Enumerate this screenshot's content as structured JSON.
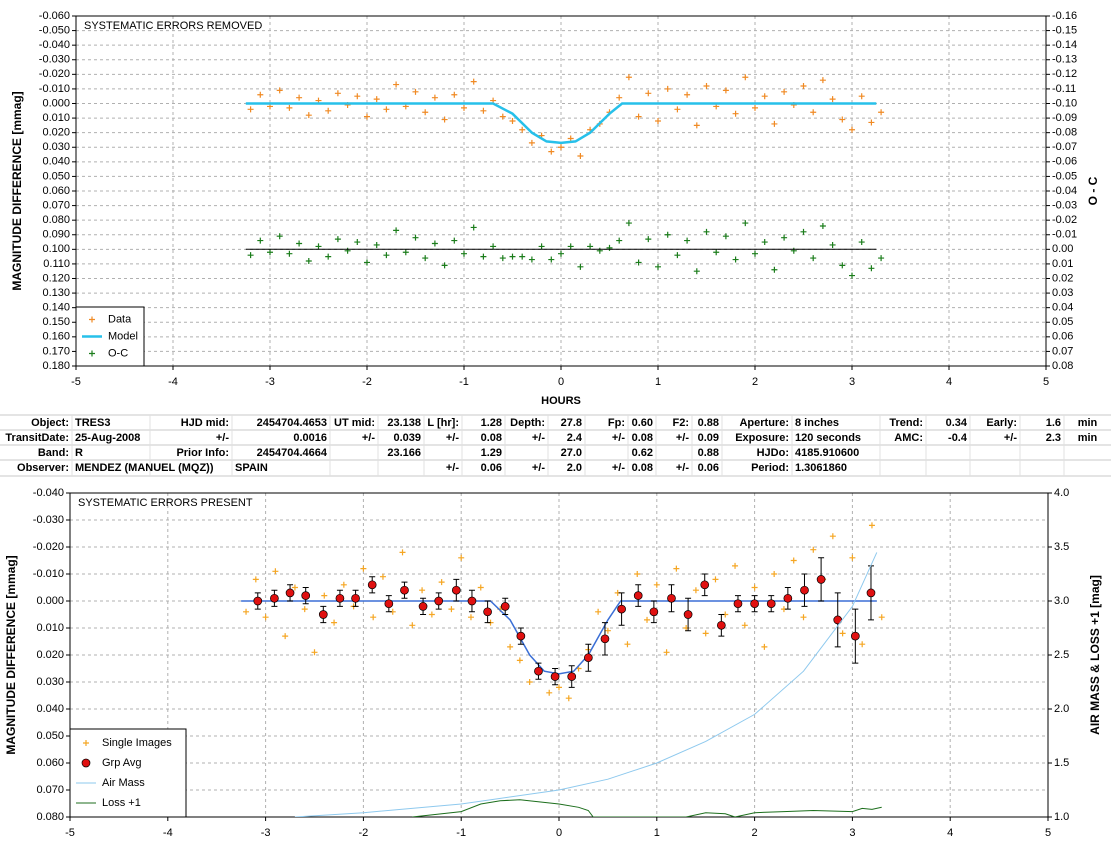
{
  "chart_data": [
    {
      "type": "scatter",
      "title": "SYSTEMATIC ERRORS REMOVED",
      "ylabel": "MAGNITUDE DIFFERENCE [mmag]",
      "y2label": "O - C",
      "xlabel": "HOURS",
      "xlim": [
        -5,
        5
      ],
      "xticks": [
        -5,
        -4,
        -3,
        -2,
        -1,
        0,
        1,
        2,
        3,
        4,
        5
      ],
      "ylim": [
        -0.06,
        0.18
      ],
      "y_inverted": true,
      "yticks": [
        {
          "value": -0.06,
          "label": "-0.060"
        },
        {
          "value": -0.05,
          "label": "-0.050"
        },
        {
          "value": -0.04,
          "label": "-0.040"
        },
        {
          "value": -0.03,
          "label": "-0.030"
        },
        {
          "value": -0.02,
          "label": "-0.020"
        },
        {
          "value": -0.01,
          "label": "-0.010"
        },
        {
          "value": 0,
          "label": "0.000"
        },
        {
          "value": 0.01,
          "label": "0.010"
        },
        {
          "value": 0.02,
          "label": "0.020"
        },
        {
          "value": 0.03,
          "label": "0.030"
        },
        {
          "value": 0.04,
          "label": "0.040"
        },
        {
          "value": 0.05,
          "label": "0.050"
        },
        {
          "value": 0.06,
          "label": "0.060"
        },
        {
          "value": 0.07,
          "label": "0.070"
        },
        {
          "value": 0.08,
          "label": "0.080"
        },
        {
          "value": 0.09,
          "label": "0.090"
        },
        {
          "value": 0.1,
          "label": "0.100"
        },
        {
          "value": 0.11,
          "label": "0.110"
        },
        {
          "value": 0.12,
          "label": "0.120"
        },
        {
          "value": 0.13,
          "label": "0.130"
        },
        {
          "value": 0.14,
          "label": "0.140"
        },
        {
          "value": 0.15,
          "label": "0.150"
        },
        {
          "value": 0.16,
          "label": "0.160"
        },
        {
          "value": 0.17,
          "label": "0.170"
        },
        {
          "value": 0.18,
          "label": "0.180"
        }
      ],
      "y2lim": [
        -0.16,
        0.08
      ],
      "y2_inverted": true,
      "y2ticks": [
        -0.16,
        -0.15,
        -0.14,
        -0.13,
        -0.12,
        -0.11,
        {
          "value": -0.1,
          "label": "-0.10"
        },
        -0.09,
        -0.08,
        -0.07,
        -0.06,
        -0.05,
        -0.04,
        -0.03,
        -0.02,
        -0.01,
        {
          "value": 0,
          "label": "0.00"
        },
        0.01,
        0.02,
        0.03,
        0.04,
        0.05,
        0.06,
        0.07,
        0.08
      ],
      "grid": true,
      "legend": "lower left",
      "series": [
        {
          "name": "Data",
          "style": "plus",
          "color": "#f08a24",
          "x": [
            -3.2,
            -3.1,
            -3.0,
            -2.9,
            -2.8,
            -2.7,
            -2.6,
            -2.5,
            -2.4,
            -2.3,
            -2.2,
            -2.1,
            -2.0,
            -1.9,
            -1.8,
            -1.7,
            -1.6,
            -1.5,
            -1.4,
            -1.3,
            -1.2,
            -1.1,
            -1.0,
            -0.9,
            -0.8,
            -0.7,
            -0.6,
            -0.5,
            -0.4,
            -0.3,
            -0.2,
            -0.1,
            0,
            0.1,
            0.2,
            0.3,
            0.4,
            0.5,
            0.6,
            0.7,
            0.8,
            0.9,
            1.0,
            1.1,
            1.2,
            1.3,
            1.4,
            1.5,
            1.6,
            1.7,
            1.8,
            1.9,
            2.0,
            2.1,
            2.2,
            2.3,
            2.4,
            2.5,
            2.6,
            2.7,
            2.8,
            2.9,
            3.0,
            3.1,
            3.2,
            3.3
          ],
          "values": [
            0.004,
            -0.006,
            0.002,
            -0.009,
            0.003,
            -0.004,
            0.008,
            -0.002,
            0.005,
            -0.007,
            0.001,
            -0.005,
            0.009,
            -0.003,
            0.004,
            -0.013,
            0.002,
            -0.008,
            0.006,
            -0.004,
            0.011,
            -0.006,
            0.003,
            -0.015,
            0.005,
            -0.002,
            0.009,
            0.012,
            0.018,
            0.027,
            0.022,
            0.033,
            0.03,
            0.024,
            0.036,
            0.018,
            0.014,
            0.006,
            -0.004,
            -0.018,
            0.009,
            -0.007,
            0.012,
            -0.01,
            0.004,
            -0.006,
            0.015,
            -0.012,
            0.002,
            -0.009,
            0.007,
            -0.018,
            0.003,
            -0.005,
            0.014,
            -0.008,
            0.001,
            -0.012,
            0.006,
            -0.016,
            -0.003,
            0.011,
            0.018,
            -0.005,
            0.013,
            0.006
          ]
        },
        {
          "name": "Model",
          "style": "line",
          "color": "#27c0ea",
          "width": 2.5,
          "x": [
            -3.25,
            -0.7,
            -0.5,
            -0.3,
            -0.15,
            0,
            0.15,
            0.3,
            0.5,
            0.63,
            3.25
          ],
          "values": [
            0,
            0,
            0.007,
            0.02,
            0.026,
            0.027,
            0.026,
            0.02,
            0.007,
            0,
            0
          ]
        },
        {
          "name": "O-C",
          "style": "plus",
          "color": "#1b7d1b",
          "axis": "y2",
          "x": [
            -3.2,
            -3.1,
            -3.0,
            -2.9,
            -2.8,
            -2.7,
            -2.6,
            -2.5,
            -2.4,
            -2.3,
            -2.2,
            -2.1,
            -2.0,
            -1.9,
            -1.8,
            -1.7,
            -1.6,
            -1.5,
            -1.4,
            -1.3,
            -1.2,
            -1.1,
            -1.0,
            -0.9,
            -0.8,
            -0.7,
            -0.6,
            -0.5,
            -0.4,
            -0.3,
            -0.2,
            -0.1,
            0,
            0.1,
            0.2,
            0.3,
            0.4,
            0.5,
            0.6,
            0.7,
            0.8,
            0.9,
            1.0,
            1.1,
            1.2,
            1.3,
            1.4,
            1.5,
            1.6,
            1.7,
            1.8,
            1.9,
            2.0,
            2.1,
            2.2,
            2.3,
            2.4,
            2.5,
            2.6,
            2.7,
            2.8,
            2.9,
            3.0,
            3.1,
            3.2,
            3.3
          ],
          "values": [
            0.004,
            -0.006,
            0.002,
            -0.009,
            0.003,
            -0.004,
            0.008,
            -0.002,
            0.005,
            -0.007,
            0.001,
            -0.005,
            0.009,
            -0.003,
            0.004,
            -0.013,
            0.002,
            -0.008,
            0.006,
            -0.004,
            0.011,
            -0.006,
            0.003,
            -0.015,
            0.005,
            -0.002,
            0.006,
            0.005,
            0.005,
            0.007,
            -0.002,
            0.007,
            0.003,
            -0.002,
            0.012,
            -0.002,
            0.001,
            -0.001,
            -0.006,
            -0.018,
            0.009,
            -0.007,
            0.012,
            -0.01,
            0.004,
            -0.006,
            0.015,
            -0.012,
            0.002,
            -0.009,
            0.007,
            -0.018,
            0.003,
            -0.005,
            0.014,
            -0.008,
            0.001,
            -0.012,
            0.006,
            -0.016,
            -0.003,
            0.011,
            0.018,
            -0.005,
            0.013,
            0.006
          ]
        },
        {
          "style": "line",
          "color": "#000000",
          "width": 1,
          "axis": "y2",
          "x": [
            -3.25,
            3.25
          ],
          "values": [
            0,
            0
          ]
        }
      ]
    },
    {
      "type": "scatter",
      "title": "SYSTEMATIC ERRORS PRESENT",
      "ylabel": "MAGNITUDE DIFFERENCE [mmag]",
      "y2label": "AIR MASS & LOSS +1 [mag]",
      "xlim": [
        -5,
        5
      ],
      "xticks": [
        -5,
        -4,
        -3,
        -2,
        -1,
        0,
        1,
        2,
        3,
        4,
        5
      ],
      "ylim": [
        -0.04,
        0.08
      ],
      "y_inverted": true,
      "yticks": [
        {
          "value": -0.04,
          "label": "-0.040"
        },
        {
          "value": -0.03,
          "label": "-0.030"
        },
        {
          "value": -0.02,
          "label": "-0.020"
        },
        {
          "value": -0.01,
          "label": "-0.010"
        },
        {
          "value": 0,
          "label": "0.000"
        },
        {
          "value": 0.01,
          "label": "0.010"
        },
        {
          "value": 0.02,
          "label": "0.020"
        },
        {
          "value": 0.03,
          "label": "0.030"
        },
        {
          "value": 0.04,
          "label": "0.040"
        },
        {
          "value": 0.05,
          "label": "0.050"
        },
        {
          "value": 0.06,
          "label": "0.060"
        },
        {
          "value": 0.07,
          "label": "0.070"
        },
        {
          "value": 0.08,
          "label": "0.080"
        }
      ],
      "y2lim": [
        1,
        4
      ],
      "y2ticks": [
        {
          "value": 1,
          "label": "1.0"
        },
        1.5,
        {
          "value": 2,
          "label": "2.0"
        },
        2.5,
        {
          "value": 3,
          "label": "3.0"
        },
        3.5,
        {
          "value": 4,
          "label": "4.0"
        }
      ],
      "grid": true,
      "legend": "lower left",
      "series": [
        {
          "name": "Single Images",
          "style": "plus",
          "color": "#f5a623",
          "x": [
            -3.2,
            -3.1,
            -3.0,
            -2.9,
            -2.8,
            -2.7,
            -2.6,
            -2.5,
            -2.4,
            -2.3,
            -2.2,
            -2.1,
            -2.0,
            -1.9,
            -1.8,
            -1.7,
            -1.6,
            -1.5,
            -1.4,
            -1.3,
            -1.2,
            -1.1,
            -1.0,
            -0.9,
            -0.8,
            -0.7,
            -0.6,
            -0.5,
            -0.4,
            -0.3,
            -0.2,
            -0.1,
            0,
            0.1,
            0.2,
            0.3,
            0.4,
            0.5,
            0.6,
            0.7,
            0.8,
            0.9,
            1.0,
            1.1,
            1.2,
            1.3,
            1.4,
            1.5,
            1.6,
            1.7,
            1.8,
            1.9,
            2.0,
            2.1,
            2.2,
            2.3,
            2.4,
            2.5,
            2.6,
            2.7,
            2.8,
            2.9,
            3.0,
            3.1,
            3.2,
            3.3
          ],
          "values": [
            0.004,
            -0.008,
            0.006,
            -0.011,
            0.013,
            -0.005,
            0.003,
            0.019,
            -0.002,
            0.008,
            -0.006,
            0.002,
            -0.012,
            0.006,
            -0.009,
            0.004,
            -0.018,
            0.009,
            -0.004,
            0.005,
            -0.007,
            0.003,
            -0.016,
            0.006,
            -0.005,
            0.008,
            0.003,
            0.017,
            0.022,
            0.03,
            0.026,
            0.034,
            0.032,
            0.036,
            0.025,
            0.018,
            0.004,
            0.011,
            -0.003,
            0.016,
            -0.01,
            0.007,
            -0.006,
            0.019,
            -0.012,
            0.01,
            -0.004,
            0.012,
            -0.008,
            0.005,
            -0.013,
            0.009,
            -0.005,
            0.017,
            -0.01,
            0.003,
            -0.015,
            0.006,
            -0.019,
            -0.008,
            -0.024,
            0.012,
            -0.016,
            0.016,
            -0.028,
            0.006
          ]
        },
        {
          "style": "line",
          "color": "#3b6fd6",
          "width": 1.5,
          "x": [
            -3.25,
            -0.7,
            -0.5,
            -0.3,
            -0.15,
            0,
            0.15,
            0.3,
            0.5,
            0.63,
            3.25
          ],
          "values": [
            0,
            0,
            0.007,
            0.02,
            0.026,
            0.027,
            0.026,
            0.02,
            0.007,
            0,
            0
          ]
        },
        {
          "name": "Grp Avg",
          "style": "circle",
          "color": "#e01010",
          "x": [
            -3.08,
            -2.91,
            -2.75,
            -2.59,
            -2.41,
            -2.24,
            -2.08,
            -1.91,
            -1.74,
            -1.58,
            -1.39,
            -1.23,
            -1.05,
            -0.89,
            -0.73,
            -0.55,
            -0.39,
            -0.21,
            -0.04,
            0.13,
            0.3,
            0.47,
            0.64,
            0.81,
            0.97,
            1.15,
            1.32,
            1.49,
            1.66,
            1.83,
            2.0,
            2.17,
            2.34,
            2.51,
            2.68,
            2.85,
            3.03,
            3.19
          ],
          "values": [
            0,
            -0.001,
            -0.003,
            -0.002,
            0.005,
            -0.001,
            -0.001,
            -0.006,
            0.001,
            -0.004,
            0.002,
            0,
            -0.004,
            0,
            0.004,
            0.002,
            0.013,
            0.026,
            0.028,
            0.028,
            0.021,
            0.014,
            0.003,
            -0.002,
            0.004,
            -0.001,
            0.005,
            -0.006,
            0.009,
            0.001,
            0.001,
            0.001,
            -0.001,
            -0.004,
            -0.008,
            0.007,
            0.013,
            -0.003
          ],
          "errors": [
            0.003,
            0.003,
            0.003,
            0.003,
            0.003,
            0.003,
            0.003,
            0.003,
            0.003,
            0.003,
            0.003,
            0.003,
            0.004,
            0.004,
            0.004,
            0.003,
            0.003,
            0.003,
            0.003,
            0.004,
            0.005,
            0.006,
            0.006,
            0.004,
            0.004,
            0.005,
            0.006,
            0.004,
            0.004,
            0.003,
            0.003,
            0.003,
            0.004,
            0.006,
            0.008,
            0.01,
            0.01,
            0.01
          ]
        },
        {
          "name": "Air Mass",
          "style": "line",
          "color": "#8ec9ee",
          "width": 1,
          "axis": "y2",
          "x": [
            -2.7,
            -2,
            -1,
            0,
            0.5,
            1,
            1.5,
            2,
            2.5,
            3,
            3.25
          ],
          "values": [
            1.0,
            1.04,
            1.12,
            1.25,
            1.35,
            1.5,
            1.7,
            1.95,
            2.35,
            2.95,
            3.45
          ]
        },
        {
          "name": "Loss +1",
          "style": "line",
          "color": "#1c6e1c",
          "width": 1,
          "axis": "y2",
          "x": [
            -1.5,
            -1.0,
            -0.8,
            -0.6,
            -0.4,
            -0.2,
            0,
            0.2,
            0.3,
            0.35,
            1.3,
            1.5,
            1.7,
            1.8,
            2.0,
            2.3,
            2.6,
            3.0,
            3.1,
            3.2,
            3.3
          ],
          "values": [
            1.0,
            1.05,
            1.12,
            1.15,
            1.16,
            1.14,
            1.12,
            1.09,
            1.06,
            1.0,
            1.0,
            1.04,
            1.03,
            1.0,
            1.04,
            1.05,
            1.06,
            1.05,
            1.08,
            1.07,
            1.09
          ]
        }
      ]
    }
  ],
  "table": {
    "rows": [
      [
        "Object:",
        "TRES3",
        "HJD mid:",
        "2454704.4653",
        "UT mid:",
        "23.138",
        "L [hr]:",
        "1.28",
        "Depth:",
        "27.8",
        "Fp:",
        "0.60",
        "F2:",
        "0.88",
        "Aperture:",
        "8 inches",
        "Trend:",
        "0.34",
        "Early:",
        "1.6",
        "min"
      ],
      [
        "TransitDate:",
        "25-Aug-2008",
        "+/-",
        "0.0016",
        "+/-",
        "0.039",
        "+/-",
        "0.08",
        "+/-",
        "2.4",
        "+/-",
        "0.08",
        "+/-",
        "0.09",
        "Exposure:",
        "120 seconds",
        "AMC:",
        "-0.4",
        "+/-",
        "2.3",
        "min"
      ],
      [
        "Band:",
        "R",
        "Prior Info:",
        "2454704.4664",
        "23.166",
        "1.29",
        "27.0",
        "0.62",
        "0.88",
        "HJDo:",
        "4185.910600"
      ],
      [
        "Observer:",
        "MENDEZ (MANUEL (MQZ))",
        "SPAIN",
        "+/-",
        "0.06",
        "+/-",
        "2.0",
        "+/-",
        "0.08",
        "+/-",
        "0.06",
        "Period:",
        "1.3061860"
      ]
    ]
  }
}
